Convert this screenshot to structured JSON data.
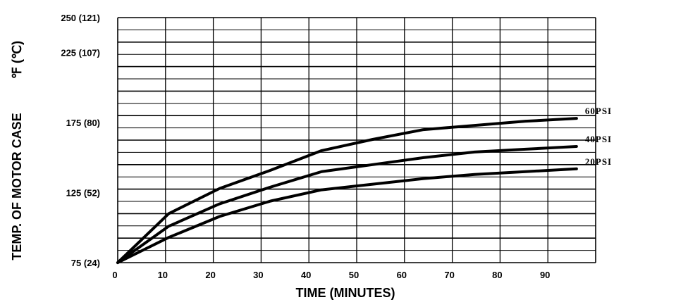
{
  "chart_data": {
    "type": "line",
    "xlabel": "TIME (MINUTES)",
    "ylabel": "TEMP. OF MOTOR CASE",
    "ylabel_units": "℉  (℃)",
    "x_ticks": [
      "0",
      "10",
      "20",
      "30",
      "40",
      "50",
      "60",
      "70",
      "80",
      "90"
    ],
    "y_ticks": [
      "75  (24)",
      "125  (52)",
      "175  (80)",
      "225 (107)",
      "250 (121)"
    ],
    "xlim": [
      0,
      90
    ],
    "ylim": [
      75,
      250
    ],
    "grid": true,
    "series": [
      {
        "name": "60PSI",
        "x": [
          0,
          10,
          20,
          30,
          40,
          50,
          60,
          70,
          80,
          90
        ],
        "y": [
          75,
          110,
          128,
          141,
          155,
          163,
          170,
          173,
          176,
          178
        ]
      },
      {
        "name": "40PSI",
        "x": [
          0,
          10,
          20,
          30,
          40,
          50,
          60,
          70,
          80,
          90
        ],
        "y": [
          75,
          101,
          117,
          129,
          140,
          145,
          150,
          154,
          156,
          158
        ]
      },
      {
        "name": "20PSI",
        "x": [
          0,
          10,
          20,
          30,
          40,
          50,
          60,
          70,
          80,
          90
        ],
        "y": [
          75,
          93,
          108,
          119,
          127,
          131,
          135,
          138,
          140,
          142
        ]
      }
    ]
  }
}
